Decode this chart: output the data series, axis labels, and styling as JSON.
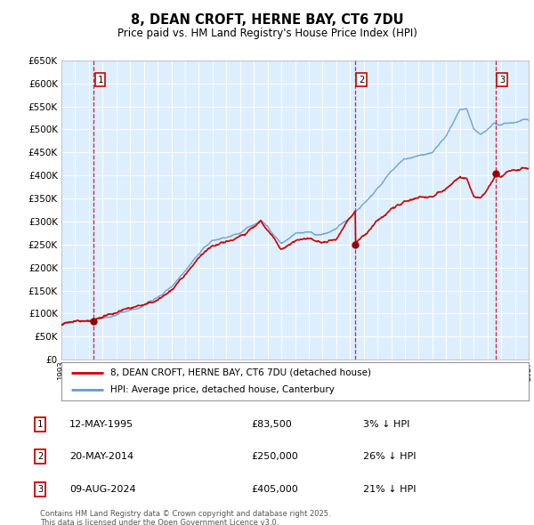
{
  "title": "8, DEAN CROFT, HERNE BAY, CT6 7DU",
  "subtitle": "Price paid vs. HM Land Registry's House Price Index (HPI)",
  "legend_line1": "8, DEAN CROFT, HERNE BAY, CT6 7DU (detached house)",
  "legend_line2": "HPI: Average price, detached house, Canterbury",
  "sale_points": [
    {
      "num": 1,
      "date_label": "12-MAY-1995",
      "price": 83500,
      "pct": "3%",
      "year": 1995.36
    },
    {
      "num": 2,
      "date_label": "20-MAY-2014",
      "price": 250000,
      "pct": "26%",
      "year": 2014.38
    },
    {
      "num": 3,
      "date_label": "09-AUG-2024",
      "price": 405000,
      "pct": "21%",
      "year": 2024.61
    }
  ],
  "footer_line1": "Contains HM Land Registry data © Crown copyright and database right 2025.",
  "footer_line2": "This data is licensed under the Open Government Licence v3.0.",
  "ylim": [
    0,
    650000
  ],
  "yticks": [
    0,
    50000,
    100000,
    150000,
    200000,
    250000,
    300000,
    350000,
    400000,
    450000,
    500000,
    550000,
    600000,
    650000
  ],
  "xlim_start": 1993,
  "xlim_end": 2027,
  "bg_color": "#ddeeff",
  "grid_color": "#ffffff",
  "red_line_color": "#cc0000",
  "blue_line_color": "#6699cc",
  "sale_marker_color": "#990000",
  "dashed_line_color": "#cc0000"
}
